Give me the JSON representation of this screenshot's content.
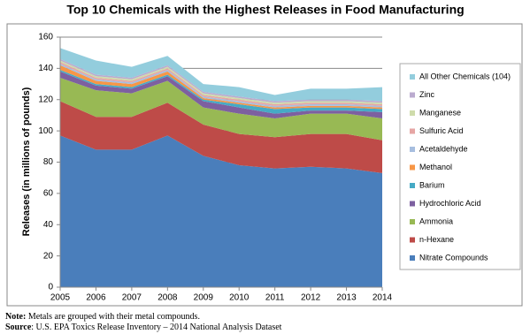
{
  "chart_data": {
    "type": "stacked_area",
    "title": "Top 10 Chemicals with the Highest Releases in Food Manufacturing",
    "y_label": "Releases (in millions of pounds)",
    "x": [
      2005,
      2006,
      2007,
      2008,
      2009,
      2010,
      2011,
      2012,
      2013,
      2014
    ],
    "xlim": [
      2005,
      2014
    ],
    "xticks": [
      2005,
      2006,
      2007,
      2008,
      2009,
      2010,
      2011,
      2012,
      2013,
      2014
    ],
    "ylim": [
      0,
      160
    ],
    "yticks": [
      0,
      20,
      40,
      60,
      80,
      100,
      120,
      140,
      160
    ],
    "grid": true,
    "series": [
      {
        "name": "Nitrate Compounds",
        "color": "#4a7ebb",
        "values": [
          97,
          88,
          88,
          97,
          84,
          78,
          76,
          77,
          76,
          73
        ]
      },
      {
        "name": "n-Hexane",
        "color": "#be4b48",
        "values": [
          22,
          21,
          21,
          21,
          20,
          20,
          20,
          21,
          22,
          21
        ]
      },
      {
        "name": "Ammonia",
        "color": "#98b954",
        "values": [
          15,
          17,
          15,
          14,
          11,
          13,
          12,
          13,
          13,
          14
        ]
      },
      {
        "name": "Hydrochloric Acid",
        "color": "#7d60a0",
        "values": [
          4,
          3,
          3,
          3,
          4,
          4,
          3,
          2,
          2,
          4
        ]
      },
      {
        "name": "Barium",
        "color": "#46aac5",
        "values": [
          1,
          1,
          1,
          1,
          1,
          2,
          3,
          2,
          2,
          2
        ]
      },
      {
        "name": "Methanol",
        "color": "#f79646",
        "values": [
          3,
          2,
          2,
          2,
          1,
          1,
          1,
          1,
          1,
          1
        ]
      },
      {
        "name": "Acetaldehyde",
        "color": "#a7bedf",
        "values": [
          1,
          1,
          1,
          1,
          1,
          1,
          1,
          1,
          1,
          1
        ]
      },
      {
        "name": "Sulfuric Acid",
        "color": "#e6a6a4",
        "values": [
          1,
          1,
          1,
          1,
          1,
          1,
          1,
          1,
          1,
          1
        ]
      },
      {
        "name": "Manganese",
        "color": "#cfdcab",
        "values": [
          1,
          1,
          1,
          1,
          1,
          1,
          1,
          1,
          1,
          1
        ]
      },
      {
        "name": "Zinc",
        "color": "#bbabcf",
        "values": [
          1,
          1,
          1,
          1,
          1,
          1,
          1,
          1,
          1,
          1
        ]
      },
      {
        "name": "All Other Chemicals (104)",
        "color": "#93cddd",
        "values": [
          7,
          9,
          7,
          6,
          5,
          6,
          4,
          7,
          7,
          9
        ]
      }
    ],
    "notes": [
      {
        "label": "Note:",
        "text": " Metals are grouped with their metal compounds."
      },
      {
        "label": "Source",
        "text": ": U.S. EPA Toxics Release Inventory – 2014 National Analysis Dataset"
      }
    ]
  }
}
